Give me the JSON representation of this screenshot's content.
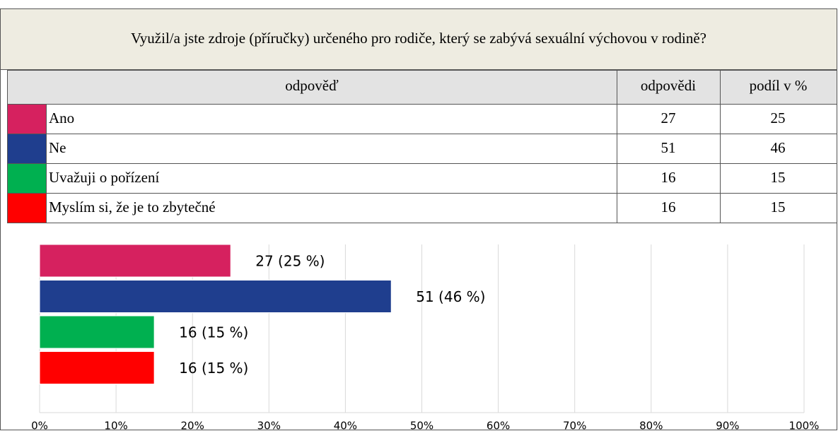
{
  "question": "Využil/a jste zdroje (příručky) určeného pro rodiče, který se zabývá sexuální výchovou v rodině?",
  "table": {
    "header": [
      "odpověď",
      "odpovědi",
      "podíl v %"
    ],
    "rows": [
      [
        "Ano",
        27,
        25
      ],
      [
        "Ne",
        51,
        46
      ],
      [
        "Uvažuji o pořízení",
        16,
        15
      ],
      [
        "Myslím si, že je to zbytečné",
        16,
        15
      ]
    ]
  },
  "chart_data": {
    "type": "bar",
    "orientation": "horizontal",
    "values": [
      25,
      46,
      15,
      15
    ],
    "value_labels": [
      "27 (25 %)",
      "51 (46 %)",
      "16 (15 %)",
      "16 (15 %)"
    ],
    "colors": [
      "#d6215f",
      "#1f3e8e",
      "#00b050",
      "#ff0000"
    ],
    "xlim": [
      0,
      100
    ],
    "xticks": [
      {
        "value": 0,
        "label": "0%"
      },
      {
        "value": 10,
        "label": "10%"
      },
      {
        "value": 20,
        "label": "20%"
      },
      {
        "value": 30,
        "label": "30%"
      },
      {
        "value": 40,
        "label": "40%"
      },
      {
        "value": 50,
        "label": "50%"
      },
      {
        "value": 60,
        "label": "60%"
      },
      {
        "value": 70,
        "label": "70%"
      },
      {
        "value": 80,
        "label": "80%"
      },
      {
        "value": 90,
        "label": "90%"
      },
      {
        "value": 100,
        "label": "100%"
      }
    ],
    "grid": true
  }
}
